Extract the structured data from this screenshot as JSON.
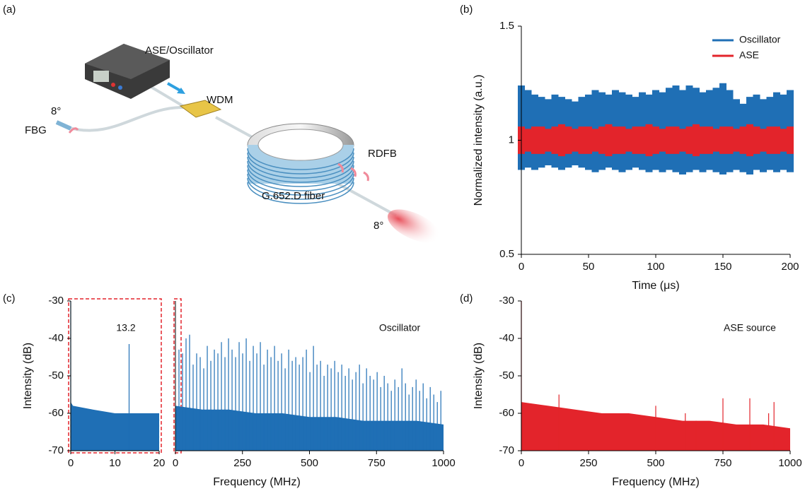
{
  "panel_labels": [
    "(a)",
    "(b)",
    "(c)",
    "(d)"
  ],
  "diagram": {
    "labels": [
      "ASE/Oscillator",
      "WDM",
      "8°",
      "FBG",
      "RDFB",
      "G.652.D fiber",
      "8°"
    ]
  },
  "chart_data": [
    {
      "type": "band",
      "xlabel": "Time (μs)",
      "ylabel": "Normalized intensity (a.u.)",
      "xlim": [
        0,
        200
      ],
      "ylim": [
        0.5,
        1.5
      ],
      "xticks": [
        0,
        50,
        100,
        150,
        200
      ],
      "yticks": [
        0.5,
        1,
        1.5
      ],
      "legend": "upper-right",
      "x": [
        0,
        5,
        10,
        15,
        20,
        25,
        30,
        35,
        40,
        45,
        50,
        55,
        60,
        65,
        70,
        75,
        80,
        85,
        90,
        95,
        100,
        105,
        110,
        115,
        120,
        125,
        130,
        135,
        140,
        145,
        150,
        155,
        160,
        165,
        170,
        175,
        180,
        185,
        190,
        195,
        200
      ],
      "series": [
        {
          "name": "Oscillator",
          "color": "#1f6fb5",
          "values": [
            1.24,
            1.22,
            1.2,
            1.19,
            1.18,
            1.2,
            1.19,
            1.18,
            1.17,
            1.19,
            1.2,
            1.22,
            1.21,
            1.2,
            1.22,
            1.21,
            1.2,
            1.19,
            1.21,
            1.2,
            1.22,
            1.21,
            1.23,
            1.24,
            1.22,
            1.24,
            1.23,
            1.21,
            1.22,
            1.23,
            1.25,
            1.22,
            1.18,
            1.16,
            1.19,
            1.2,
            1.18,
            1.19,
            1.21,
            1.2,
            1.22
          ],
          "lower": [
            0.87,
            0.88,
            0.87,
            0.88,
            0.89,
            0.88,
            0.87,
            0.88,
            0.89,
            0.88,
            0.87,
            0.86,
            0.87,
            0.88,
            0.87,
            0.86,
            0.87,
            0.88,
            0.87,
            0.86,
            0.87,
            0.86,
            0.87,
            0.86,
            0.85,
            0.86,
            0.87,
            0.86,
            0.87,
            0.86,
            0.85,
            0.86,
            0.87,
            0.86,
            0.85,
            0.87,
            0.86,
            0.87,
            0.86,
            0.87,
            0.86
          ]
        },
        {
          "name": "ASE",
          "color": "#e3242b",
          "values": [
            1.06,
            1.05,
            1.06,
            1.06,
            1.05,
            1.06,
            1.07,
            1.06,
            1.05,
            1.06,
            1.06,
            1.05,
            1.06,
            1.07,
            1.06,
            1.06,
            1.05,
            1.06,
            1.06,
            1.07,
            1.06,
            1.05,
            1.06,
            1.06,
            1.05,
            1.06,
            1.07,
            1.06,
            1.06,
            1.05,
            1.06,
            1.06,
            1.05,
            1.06,
            1.07,
            1.06,
            1.05,
            1.06,
            1.06,
            1.05,
            1.06
          ],
          "lower": [
            0.94,
            0.95,
            0.94,
            0.94,
            0.95,
            0.94,
            0.93,
            0.94,
            0.95,
            0.94,
            0.94,
            0.95,
            0.94,
            0.93,
            0.94,
            0.94,
            0.95,
            0.94,
            0.94,
            0.93,
            0.94,
            0.95,
            0.94,
            0.94,
            0.95,
            0.94,
            0.93,
            0.94,
            0.94,
            0.95,
            0.94,
            0.94,
            0.95,
            0.94,
            0.93,
            0.94,
            0.95,
            0.94,
            0.94,
            0.95,
            0.94
          ]
        }
      ]
    },
    {
      "type": "spectrum",
      "ylabel": "Intensity (dB)",
      "annotation": "13.2",
      "color": "#1f6fb5",
      "xlim": [
        0,
        20
      ],
      "ylim": [
        -70,
        -30
      ],
      "xticks": [
        0,
        10,
        20
      ],
      "yticks": [
        -30,
        -40,
        -50,
        -60,
        -70
      ],
      "x": [
        0,
        13.2
      ],
      "values": [
        -30,
        -41.5
      ],
      "floor_x": [
        0,
        0.5,
        5,
        10,
        15,
        20
      ],
      "floor": [
        -57,
        -58,
        -59,
        -60,
        -60,
        -60
      ]
    },
    {
      "type": "spectrum",
      "xlabel": "Frequency (MHz)",
      "annotation": "Oscillator",
      "color": "#1f6fb5",
      "xlim": [
        0,
        1000
      ],
      "ylim": [
        -70,
        -30
      ],
      "xticks": [
        0,
        250,
        500,
        750,
        1000
      ],
      "x": [
        13.2,
        26.4,
        39.6,
        52.8,
        66,
        79.2,
        92.4,
        105.6,
        118.8,
        132,
        145.2,
        158.4,
        171.6,
        184.8,
        198,
        211.2,
        224.4,
        237.6,
        250.8,
        264,
        277.2,
        290.4,
        303.6,
        316.8,
        330,
        343.2,
        356.4,
        369.6,
        382.8,
        396,
        409.2,
        422.4,
        435.6,
        448.8,
        462,
        475.2,
        488.4,
        501.6,
        514.8,
        528,
        541.2,
        554.4,
        567.6,
        580.8,
        594,
        607.2,
        620.4,
        633.6,
        646.8,
        660,
        673.2,
        686.4,
        699.6,
        712.8,
        726,
        739.2,
        752.4,
        765.6,
        778.8,
        792,
        805.2,
        818.4,
        831.6,
        844.8,
        858,
        871.2,
        884.4,
        897.6,
        910.8,
        924,
        937.2,
        950.4,
        963.6,
        976.8,
        990
      ],
      "values": [
        -43,
        -44,
        -40,
        -39,
        -47,
        -44,
        -45,
        -48,
        -42,
        -46,
        -43,
        -44,
        -41,
        -45,
        -40,
        -43,
        -45,
        -41,
        -44,
        -40,
        -46,
        -42,
        -44,
        -41,
        -47,
        -43,
        -45,
        -42,
        -46,
        -44,
        -48,
        -43,
        -46,
        -45,
        -47,
        -45,
        -43,
        -49,
        -42,
        -47,
        -46,
        -50,
        -47,
        -48,
        -46,
        -49,
        -47,
        -50,
        -48,
        -51,
        -49,
        -47,
        -52,
        -48,
        -50,
        -51,
        -49,
        -53,
        -50,
        -52,
        -54,
        -51,
        -53,
        -48,
        -52,
        -55,
        -53,
        -51,
        -54,
        -52,
        -56,
        -53,
        -55,
        -57,
        -54
      ],
      "floor_x": [
        0,
        100,
        200,
        300,
        400,
        500,
        600,
        700,
        800,
        900,
        1000
      ],
      "floor": [
        -58,
        -59,
        -59,
        -60,
        -60,
        -61,
        -61,
        -62,
        -62,
        -62,
        -63
      ]
    },
    {
      "type": "spectrum",
      "xlabel": "Frequency (MHz)",
      "ylabel": "Intensity (dB)",
      "annotation": "ASE source",
      "color": "#e3242b",
      "xlim": [
        0,
        1000
      ],
      "ylim": [
        -70,
        -30
      ],
      "xticks": [
        0,
        250,
        500,
        750,
        1000
      ],
      "yticks": [
        -30,
        -40,
        -50,
        -60,
        -70
      ],
      "x": [
        0,
        140,
        500,
        610,
        650,
        750,
        850,
        920,
        940
      ],
      "values": [
        -30,
        -55,
        -58,
        -60,
        -62,
        -56,
        -56,
        -60,
        -57
      ],
      "floor_x": [
        0,
        100,
        200,
        300,
        400,
        500,
        600,
        700,
        800,
        900,
        1000
      ],
      "floor": [
        -57,
        -58,
        -59,
        -60,
        -60,
        -61,
        -62,
        -62,
        -63,
        -63,
        -64
      ]
    }
  ]
}
